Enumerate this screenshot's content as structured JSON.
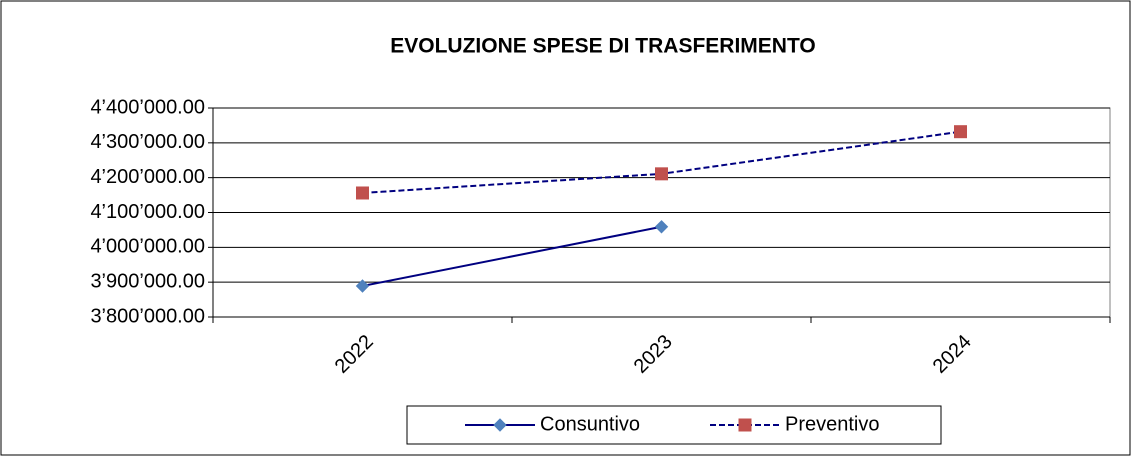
{
  "chart_data": {
    "type": "line",
    "title": "EVOLUZIONE SPESE DI TRASFERIMENTO",
    "categories": [
      "2022",
      "2023",
      "2024"
    ],
    "series": [
      {
        "name": "Consuntivo",
        "color": "#000080",
        "marker_color": "#4f81bd",
        "marker": "diamond",
        "dash": false,
        "values": [
          3889000,
          4059000,
          null
        ]
      },
      {
        "name": "Preventivo",
        "color": "#000080",
        "marker_color": "#c0504d",
        "marker": "square",
        "dash": true,
        "values": [
          4156000,
          4211000,
          4332000
        ]
      }
    ],
    "ylim": [
      3800000,
      4400000
    ],
    "yticks": [
      {
        "value": 3800000,
        "label": "3’800’000.00"
      },
      {
        "value": 3900000,
        "label": "3’900’000.00"
      },
      {
        "value": 4000000,
        "label": "4’000’000.00"
      },
      {
        "value": 4100000,
        "label": "4’100’000.00"
      },
      {
        "value": 4200000,
        "label": "4’200’000.00"
      },
      {
        "value": 4300000,
        "label": "4’300’000.00"
      },
      {
        "value": 4400000,
        "label": "4’400’000.00"
      }
    ],
    "grid": true,
    "legend": "bottom"
  }
}
